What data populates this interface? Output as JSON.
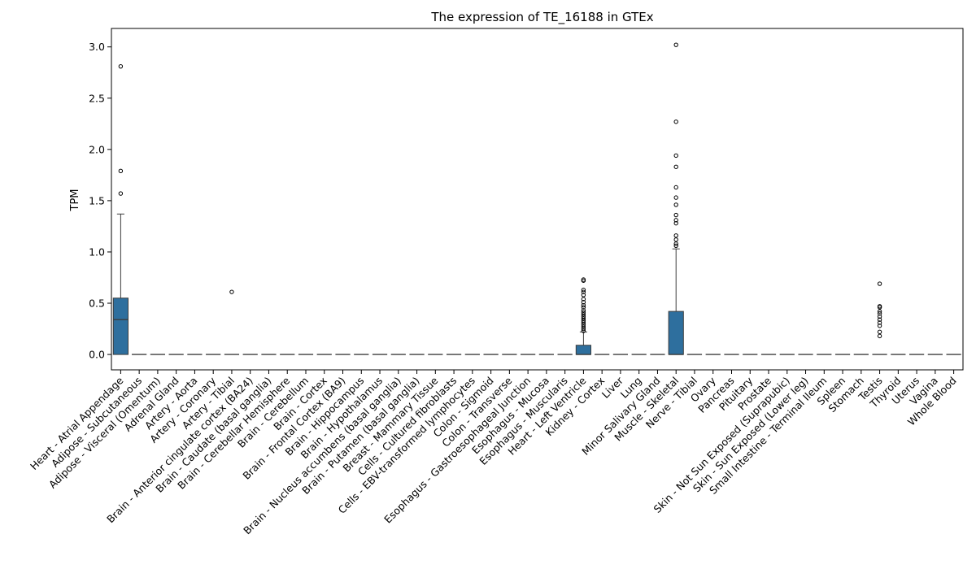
{
  "chart_data": {
    "type": "box",
    "title": "The expression of TE_16188 in GTEx",
    "xlabel": "",
    "ylabel": "TPM",
    "ylim": [
      -0.15,
      3.18
    ],
    "yticks": [
      "0.0",
      "0.5",
      "1.0",
      "1.5",
      "2.0",
      "2.5",
      "3.0"
    ],
    "ytick_values": [
      0,
      0.5,
      1.0,
      1.5,
      2.0,
      2.5,
      3.0
    ],
    "grid": false,
    "legend": "none",
    "colors": {
      "box": "#2e6f9e",
      "box_edge": "#3d3d3d",
      "median": "#3d3d3d",
      "outlier_edge": "#000000"
    },
    "categories": [
      "Heart - Atrial Appendage",
      "Adipose - Subcutaneous",
      "Adipose - Visceral (Omentum)",
      "Adrenal Gland",
      "Artery - Aorta",
      "Artery - Coronary",
      "Artery - Tibial",
      "Brain - Anterior cingulate cortex (BA24)",
      "Brain - Caudate (basal ganglia)",
      "Brain - Cerebellar Hemisphere",
      "Brain - Cerebellum",
      "Brain - Cortex",
      "Brain - Frontal Cortex (BA9)",
      "Brain - Hippocampus",
      "Brain - Hypothalamus",
      "Brain - Nucleus accumbens (basal ganglia)",
      "Brain - Putamen (basal ganglia)",
      "Breast - Mammary Tissue",
      "Cells - Cultured fibroblasts",
      "Cells - EBV-transformed lymphocytes",
      "Colon - Sigmoid",
      "Colon - Transverse",
      "Esophagus - Gastroesophageal Junction",
      "Esophagus - Mucosa",
      "Esophagus - Muscularis",
      "Heart - Left Ventricle",
      "Kidney - Cortex",
      "Liver",
      "Lung",
      "Minor Salivary Gland",
      "Muscle - Skeletal",
      "Nerve - Tibial",
      "Ovary",
      "Pancreas",
      "Pituitary",
      "Prostate",
      "Skin - Not Sun Exposed (Suprapubic)",
      "Skin - Sun Exposed (Lower leg)",
      "Small Intestine - Terminal Ileum",
      "Spleen",
      "Stomach",
      "Testis",
      "Thyroid",
      "Uterus",
      "Vagina",
      "Whole Blood"
    ],
    "boxes": [
      {
        "q1": 0,
        "median": 0.34,
        "q3": 0.55,
        "whisker_low": 0,
        "whisker_high": 1.37,
        "outliers": [
          1.57,
          1.79,
          2.81
        ]
      },
      {
        "q1": 0,
        "median": 0,
        "q3": 0,
        "whisker_low": 0,
        "whisker_high": 0,
        "outliers": []
      },
      {
        "q1": 0,
        "median": 0,
        "q3": 0,
        "whisker_low": 0,
        "whisker_high": 0,
        "outliers": []
      },
      {
        "q1": 0,
        "median": 0,
        "q3": 0,
        "whisker_low": 0,
        "whisker_high": 0,
        "outliers": []
      },
      {
        "q1": 0,
        "median": 0,
        "q3": 0,
        "whisker_low": 0,
        "whisker_high": 0,
        "outliers": []
      },
      {
        "q1": 0,
        "median": 0,
        "q3": 0,
        "whisker_low": 0,
        "whisker_high": 0,
        "outliers": []
      },
      {
        "q1": 0,
        "median": 0,
        "q3": 0,
        "whisker_low": 0,
        "whisker_high": 0,
        "outliers": [
          0.61
        ]
      },
      {
        "q1": 0,
        "median": 0,
        "q3": 0,
        "whisker_low": 0,
        "whisker_high": 0,
        "outliers": []
      },
      {
        "q1": 0,
        "median": 0,
        "q3": 0,
        "whisker_low": 0,
        "whisker_high": 0,
        "outliers": []
      },
      {
        "q1": 0,
        "median": 0,
        "q3": 0,
        "whisker_low": 0,
        "whisker_high": 0,
        "outliers": []
      },
      {
        "q1": 0,
        "median": 0,
        "q3": 0,
        "whisker_low": 0,
        "whisker_high": 0,
        "outliers": []
      },
      {
        "q1": 0,
        "median": 0,
        "q3": 0,
        "whisker_low": 0,
        "whisker_high": 0,
        "outliers": []
      },
      {
        "q1": 0,
        "median": 0,
        "q3": 0,
        "whisker_low": 0,
        "whisker_high": 0,
        "outliers": []
      },
      {
        "q1": 0,
        "median": 0,
        "q3": 0,
        "whisker_low": 0,
        "whisker_high": 0,
        "outliers": []
      },
      {
        "q1": 0,
        "median": 0,
        "q3": 0,
        "whisker_low": 0,
        "whisker_high": 0,
        "outliers": []
      },
      {
        "q1": 0,
        "median": 0,
        "q3": 0,
        "whisker_low": 0,
        "whisker_high": 0,
        "outliers": []
      },
      {
        "q1": 0,
        "median": 0,
        "q3": 0,
        "whisker_low": 0,
        "whisker_high": 0,
        "outliers": []
      },
      {
        "q1": 0,
        "median": 0,
        "q3": 0,
        "whisker_low": 0,
        "whisker_high": 0,
        "outliers": []
      },
      {
        "q1": 0,
        "median": 0,
        "q3": 0,
        "whisker_low": 0,
        "whisker_high": 0,
        "outliers": []
      },
      {
        "q1": 0,
        "median": 0,
        "q3": 0,
        "whisker_low": 0,
        "whisker_high": 0,
        "outliers": []
      },
      {
        "q1": 0,
        "median": 0,
        "q3": 0,
        "whisker_low": 0,
        "whisker_high": 0,
        "outliers": []
      },
      {
        "q1": 0,
        "median": 0,
        "q3": 0,
        "whisker_low": 0,
        "whisker_high": 0,
        "outliers": []
      },
      {
        "q1": 0,
        "median": 0,
        "q3": 0,
        "whisker_low": 0,
        "whisker_high": 0,
        "outliers": []
      },
      {
        "q1": 0,
        "median": 0,
        "q3": 0,
        "whisker_low": 0,
        "whisker_high": 0,
        "outliers": []
      },
      {
        "q1": 0,
        "median": 0,
        "q3": 0,
        "whisker_low": 0,
        "whisker_high": 0,
        "outliers": []
      },
      {
        "q1": 0,
        "median": 0,
        "q3": 0.09,
        "whisker_low": 0,
        "whisker_high": 0.22,
        "outliers": [
          0.23,
          0.25,
          0.27,
          0.29,
          0.31,
          0.33,
          0.35,
          0.37,
          0.39,
          0.41,
          0.43,
          0.46,
          0.48,
          0.51,
          0.54,
          0.58,
          0.61,
          0.63,
          0.72,
          0.73
        ]
      },
      {
        "q1": 0,
        "median": 0,
        "q3": 0,
        "whisker_low": 0,
        "whisker_high": 0,
        "outliers": []
      },
      {
        "q1": 0,
        "median": 0,
        "q3": 0,
        "whisker_low": 0,
        "whisker_high": 0,
        "outliers": []
      },
      {
        "q1": 0,
        "median": 0,
        "q3": 0,
        "whisker_low": 0,
        "whisker_high": 0,
        "outliers": []
      },
      {
        "q1": 0,
        "median": 0,
        "q3": 0,
        "whisker_low": 0,
        "whisker_high": 0,
        "outliers": []
      },
      {
        "q1": 0,
        "median": 0,
        "q3": 0.42,
        "whisker_low": 0,
        "whisker_high": 1.03,
        "outliers": [
          1.06,
          1.08,
          1.12,
          1.16,
          1.28,
          1.31,
          1.36,
          1.46,
          1.53,
          1.63,
          1.83,
          1.94,
          2.27,
          3.02
        ]
      },
      {
        "q1": 0,
        "median": 0,
        "q3": 0,
        "whisker_low": 0,
        "whisker_high": 0,
        "outliers": []
      },
      {
        "q1": 0,
        "median": 0,
        "q3": 0,
        "whisker_low": 0,
        "whisker_high": 0,
        "outliers": []
      },
      {
        "q1": 0,
        "median": 0,
        "q3": 0,
        "whisker_low": 0,
        "whisker_high": 0,
        "outliers": []
      },
      {
        "q1": 0,
        "median": 0,
        "q3": 0,
        "whisker_low": 0,
        "whisker_high": 0,
        "outliers": []
      },
      {
        "q1": 0,
        "median": 0,
        "q3": 0,
        "whisker_low": 0,
        "whisker_high": 0,
        "outliers": []
      },
      {
        "q1": 0,
        "median": 0,
        "q3": 0,
        "whisker_low": 0,
        "whisker_high": 0,
        "outliers": []
      },
      {
        "q1": 0,
        "median": 0,
        "q3": 0,
        "whisker_low": 0,
        "whisker_high": 0,
        "outliers": []
      },
      {
        "q1": 0,
        "median": 0,
        "q3": 0,
        "whisker_low": 0,
        "whisker_high": 0,
        "outliers": []
      },
      {
        "q1": 0,
        "median": 0,
        "q3": 0,
        "whisker_low": 0,
        "whisker_high": 0,
        "outliers": []
      },
      {
        "q1": 0,
        "median": 0,
        "q3": 0,
        "whisker_low": 0,
        "whisker_high": 0,
        "outliers": []
      },
      {
        "q1": 0,
        "median": 0,
        "q3": 0,
        "whisker_low": 0,
        "whisker_high": 0,
        "outliers": [
          0.18,
          0.22,
          0.28,
          0.31,
          0.34,
          0.37,
          0.4,
          0.42,
          0.46,
          0.47,
          0.69
        ]
      },
      {
        "q1": 0,
        "median": 0,
        "q3": 0,
        "whisker_low": 0,
        "whisker_high": 0,
        "outliers": []
      },
      {
        "q1": 0,
        "median": 0,
        "q3": 0,
        "whisker_low": 0,
        "whisker_high": 0,
        "outliers": []
      },
      {
        "q1": 0,
        "median": 0,
        "q3": 0,
        "whisker_low": 0,
        "whisker_high": 0,
        "outliers": []
      },
      {
        "q1": 0,
        "median": 0,
        "q3": 0,
        "whisker_low": 0,
        "whisker_high": 0,
        "outliers": []
      }
    ]
  }
}
